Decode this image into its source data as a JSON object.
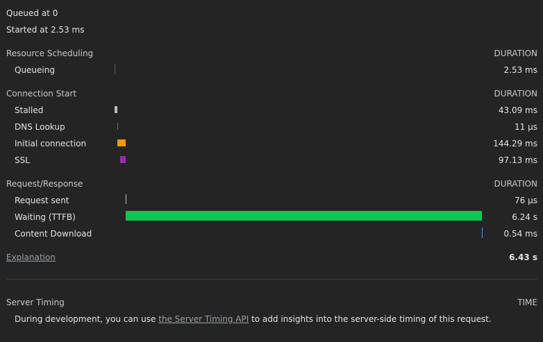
{
  "queued": "Queued at 0",
  "started": "Started at 2.53 ms",
  "duration_header": "DURATION",
  "sections": {
    "scheduling": {
      "title": "Resource Scheduling",
      "rows": [
        {
          "label": "Queueing",
          "value": "2.53 ms",
          "color": "#5f6368"
        }
      ]
    },
    "connection": {
      "title": "Connection Start",
      "rows": [
        {
          "label": "Stalled",
          "value": "43.09 ms",
          "color": "#bdbdbd"
        },
        {
          "label": "DNS Lookup",
          "value": "11 µs",
          "color": "#1ea446"
        },
        {
          "label": "Initial connection",
          "value": "144.29 ms",
          "color": "#f29900"
        },
        {
          "label": "SSL",
          "value": "97.13 ms",
          "color": "#9c27b0"
        }
      ]
    },
    "request": {
      "title": "Request/Response",
      "rows": [
        {
          "label": "Request sent",
          "value": "76 µs",
          "color": "#bdbdbd"
        },
        {
          "label": "Waiting (TTFB)",
          "value": "6.24 s",
          "color": "#0cc755"
        },
        {
          "label": "Content Download",
          "value": "0.54 ms",
          "color": "#4aa3df"
        }
      ]
    }
  },
  "explanation_link": "Explanation",
  "total": "6.43 s",
  "server_timing": {
    "title": "Server Timing",
    "time_header": "TIME",
    "text_before": "During development, you can use ",
    "link_text": "the Server Timing API",
    "text_after": " to add insights into the server-side timing of this request."
  }
}
